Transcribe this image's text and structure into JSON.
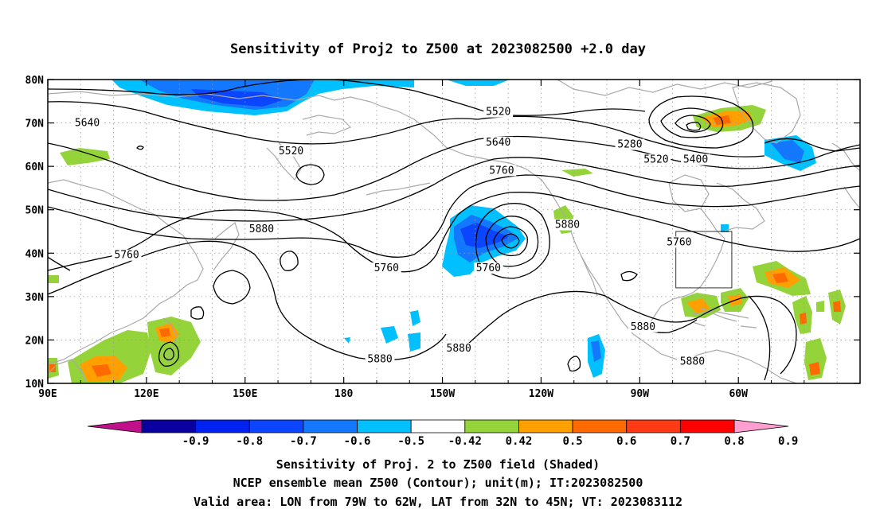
{
  "title": "Sensitivity of Proj2 to Z500 at 2023082500 +2.0 day",
  "lon_ticks": [
    "90E",
    "120E",
    "150E",
    "180",
    "150W",
    "120W",
    "90W",
    "60W"
  ],
  "lat_ticks": [
    "80N",
    "70N",
    "60N",
    "50N",
    "40N",
    "30N",
    "20N",
    "10N"
  ],
  "contour_labels": [
    {
      "text": "5640",
      "lon": 102,
      "lat": 69.5
    },
    {
      "text": "5520",
      "lon": 164,
      "lat": 63
    },
    {
      "text": "5520",
      "lon": 227,
      "lat": 72
    },
    {
      "text": "5640",
      "lon": 227,
      "lat": 65
    },
    {
      "text": "5760",
      "lon": 228,
      "lat": 58.5
    },
    {
      "text": "5280",
      "lon": 267,
      "lat": 64.5
    },
    {
      "text": "5400",
      "lon": 287,
      "lat": 61
    },
    {
      "text": "5520",
      "lon": 275,
      "lat": 61
    },
    {
      "text": "5880",
      "lon": 155,
      "lat": 45
    },
    {
      "text": "5760",
      "lon": 114,
      "lat": 39
    },
    {
      "text": "5760",
      "lon": 193,
      "lat": 36
    },
    {
      "text": "5760",
      "lon": 224,
      "lat": 36
    },
    {
      "text": "5880",
      "lon": 248,
      "lat": 46
    },
    {
      "text": "5760",
      "lon": 282,
      "lat": 42
    },
    {
      "text": "5880",
      "lon": 271,
      "lat": 22.5
    },
    {
      "text": "5880",
      "lon": 215,
      "lat": 17.5
    },
    {
      "text": "5880",
      "lon": 191,
      "lat": 15
    },
    {
      "text": "5880",
      "lon": 286,
      "lat": 14.5
    }
  ],
  "valid_area": {
    "lon": [
      281,
      298
    ],
    "lat": [
      32,
      45
    ]
  },
  "colorbar": {
    "labels": [
      "-0.9",
      "-0.8",
      "-0.7",
      "-0.6",
      "-0.5",
      "-0.42",
      "0.42",
      "0.5",
      "0.6",
      "0.7",
      "0.8",
      "0.9"
    ],
    "colors": [
      "#0a00a0",
      "#0022f0",
      "#0b45ff",
      "#1478ff",
      "#00c0ff",
      "#ffffff",
      "#94d43a",
      "#ffa000",
      "#ff6a00",
      "#ff3a14",
      "#ff0000"
    ],
    "low_color": "#c0108a",
    "high_color": "#ff9ed0"
  },
  "caption": {
    "line1": "Sensitivity of Proj. 2 to Z500 field (Shaded)",
    "line2": "NCEP ensemble mean Z500 (Contour); unit(m); IT:2023082500",
    "line3": "Valid area: LON from 79W to 62W, LAT from 32N to 45N; VT: 2023083112"
  }
}
